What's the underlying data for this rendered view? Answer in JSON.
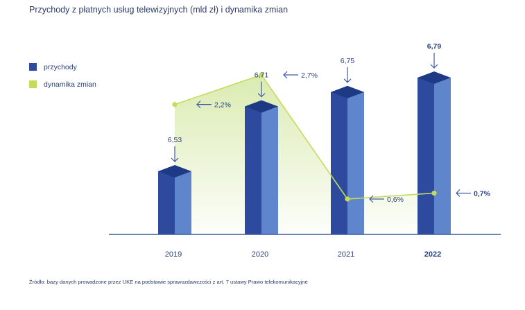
{
  "title": "Przychody z płatnych usług telewizyjnych (mld zł) i dynamika zmian",
  "legend": [
    {
      "label": "przychody",
      "color": "#2d4a9e"
    },
    {
      "label": "dynamika zmian",
      "color": "#c4dc5a"
    }
  ],
  "source": "Źródło: bazy danych prowadzone przez UKE na podstawie sprawozdawczości z art. 7 ustawy Prawo telekomunikacyjne",
  "colors": {
    "bar_front": "#2d4a9e",
    "bar_side": "#5f86cc",
    "bar_top": "#1f3a85",
    "line": "#c4dc5a",
    "area_fill": "#d6e9a8",
    "axis": "#3c5ba3"
  },
  "chart_data": {
    "type": "bar",
    "categories": [
      "2019",
      "2020",
      "2021",
      "2022"
    ],
    "bold_categories": [
      "2022"
    ],
    "series": [
      {
        "name": "przychody",
        "type": "bar",
        "values": [
          6.53,
          6.71,
          6.75,
          6.79
        ],
        "labels": [
          "6,53",
          "6,71",
          "6,75",
          "6,79"
        ]
      },
      {
        "name": "dynamika zmian",
        "type": "line",
        "values": [
          2.2,
          2.7,
          0.6,
          0.7
        ],
        "labels": [
          "2,2%",
          "2,7%",
          "0,6%",
          "0,7%"
        ]
      }
    ]
  }
}
